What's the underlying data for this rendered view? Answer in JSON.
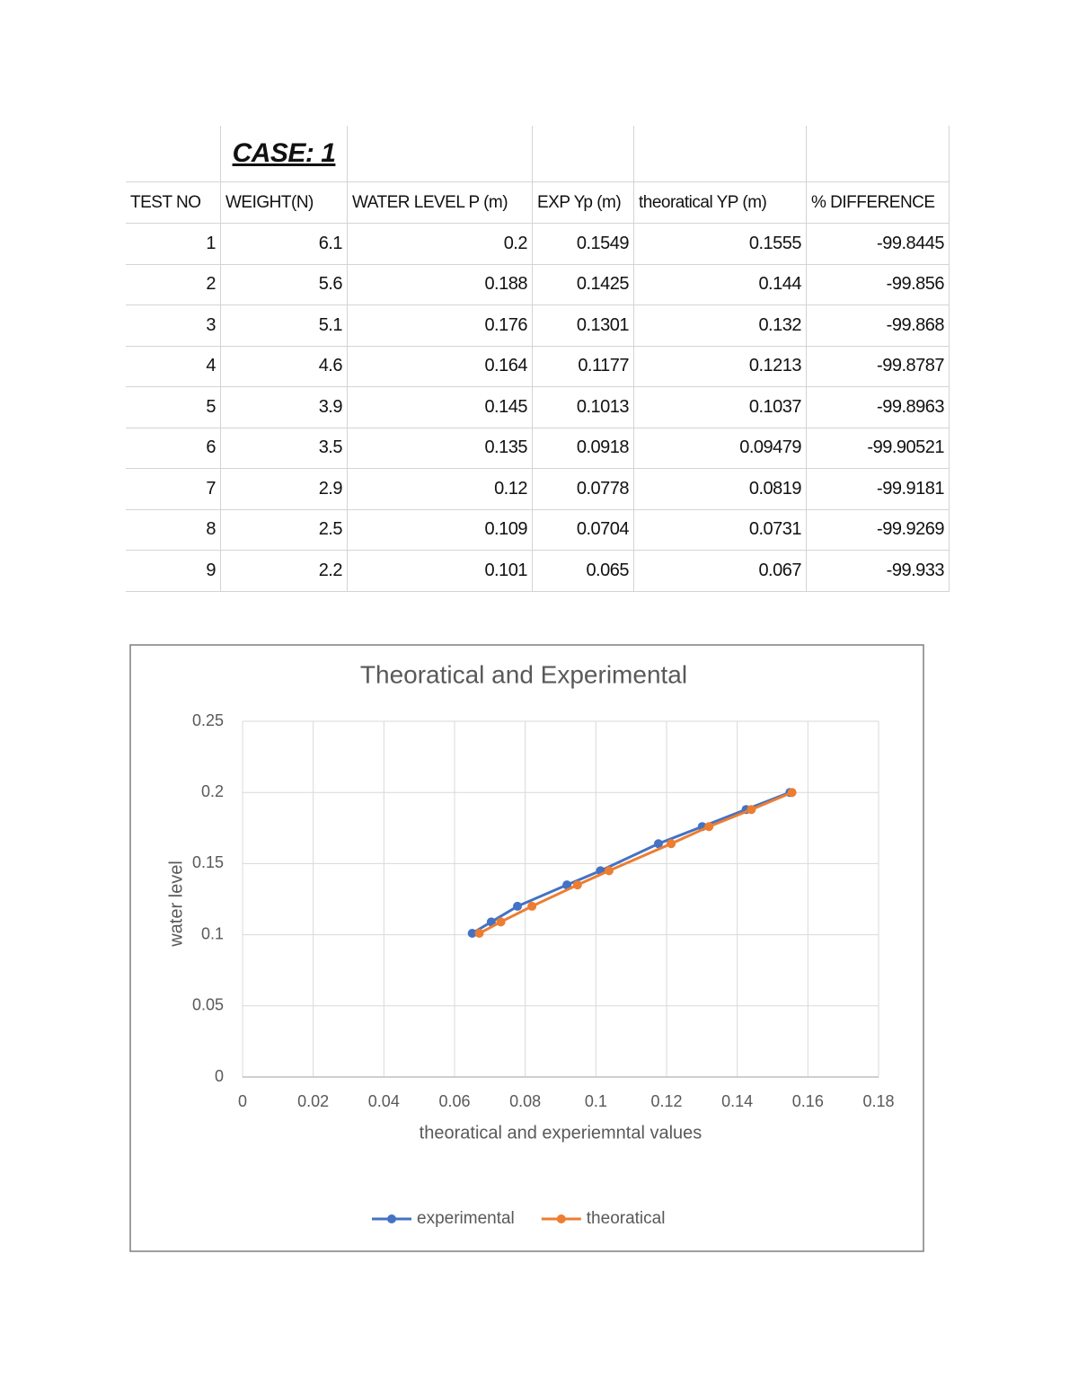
{
  "table": {
    "title": "CASE: 1",
    "header": [
      "TEST NO",
      "WEIGHT(N)",
      "WATER LEVEL P (m)",
      "EXP Yp (m)",
      "theoratical YP (m)",
      "% DIFFERENCE"
    ],
    "rows": [
      [
        1,
        6.1,
        0.2,
        0.1549,
        0.1555,
        -99.8445
      ],
      [
        2,
        5.6,
        0.188,
        0.1425,
        0.144,
        -99.856
      ],
      [
        3,
        5.1,
        0.176,
        0.1301,
        0.132,
        -99.868
      ],
      [
        4,
        4.6,
        0.164,
        0.1177,
        0.1213,
        -99.8787
      ],
      [
        5,
        3.9,
        0.145,
        0.1013,
        0.1037,
        -99.8963
      ],
      [
        6,
        3.5,
        0.135,
        0.0918,
        0.09479,
        -99.90521
      ],
      [
        7,
        2.9,
        0.12,
        0.0778,
        0.0819,
        -99.9181
      ],
      [
        8,
        2.5,
        0.109,
        0.0704,
        0.0731,
        -99.9269
      ],
      [
        9,
        2.2,
        0.101,
        0.065,
        0.067,
        -99.933
      ]
    ]
  },
  "chart_data": {
    "type": "line",
    "title": "Theoratical and Experimental",
    "x_label": "theoratical and experiemntal values",
    "y_label": "water level",
    "xlim": [
      0,
      0.18
    ],
    "xticks": [
      0,
      0.02,
      0.04,
      0.06,
      0.08,
      0.1,
      0.12,
      0.14,
      0.16,
      0.18
    ],
    "ylim": [
      0,
      0.25
    ],
    "yticks": [
      0,
      0.05,
      0.1,
      0.15,
      0.2,
      0.25
    ],
    "grid": true,
    "legend": "bottom",
    "series": [
      {
        "name": "experimental",
        "color": "#4472c4",
        "x": [
          0.1549,
          0.1425,
          0.1301,
          0.1177,
          0.1013,
          0.0918,
          0.0778,
          0.0704,
          0.065
        ],
        "values": [
          0.2,
          0.188,
          0.176,
          0.164,
          0.145,
          0.135,
          0.12,
          0.109,
          0.101
        ]
      },
      {
        "name": "theoratical",
        "color": "#ed7d31",
        "x": [
          0.1555,
          0.144,
          0.132,
          0.1213,
          0.1037,
          0.09479,
          0.0819,
          0.0731,
          0.067
        ],
        "values": [
          0.2,
          0.188,
          0.176,
          0.164,
          0.145,
          0.135,
          0.12,
          0.109,
          0.101
        ]
      }
    ]
  }
}
